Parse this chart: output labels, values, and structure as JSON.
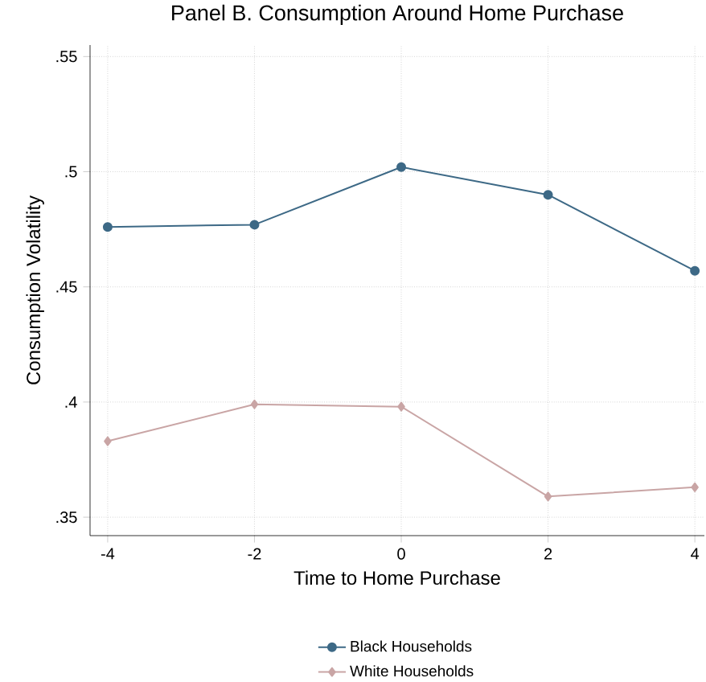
{
  "chart_data": {
    "type": "line",
    "title": "Panel B. Consumption Around Home Purchase",
    "xlabel": "Time to Home Purchase",
    "ylabel": "Consumption Volatility",
    "x": [
      -4,
      -2,
      0,
      2,
      4
    ],
    "series": [
      {
        "name": "Black Households",
        "color": "#3d6986",
        "marker": "circle",
        "values": [
          0.476,
          0.477,
          0.502,
          0.49,
          0.457
        ]
      },
      {
        "name": "White Households",
        "color": "#c9a5a5",
        "marker": "diamond",
        "values": [
          0.383,
          0.399,
          0.398,
          0.359,
          0.363
        ]
      }
    ],
    "xlim": [
      -4.24,
      4.13
    ],
    "ylim": [
      0.342,
      0.555
    ],
    "xticks": [
      -4,
      -2,
      0,
      2,
      4
    ],
    "yticks": [
      {
        "value": 0.35,
        "label": ".35"
      },
      {
        "value": 0.4,
        "label": ".4"
      },
      {
        "value": 0.45,
        "label": ".45"
      },
      {
        "value": 0.5,
        "label": ".5"
      },
      {
        "value": 0.55,
        "label": ".55"
      }
    ],
    "grid": true,
    "legend": "bottom",
    "line_style": "solid"
  }
}
